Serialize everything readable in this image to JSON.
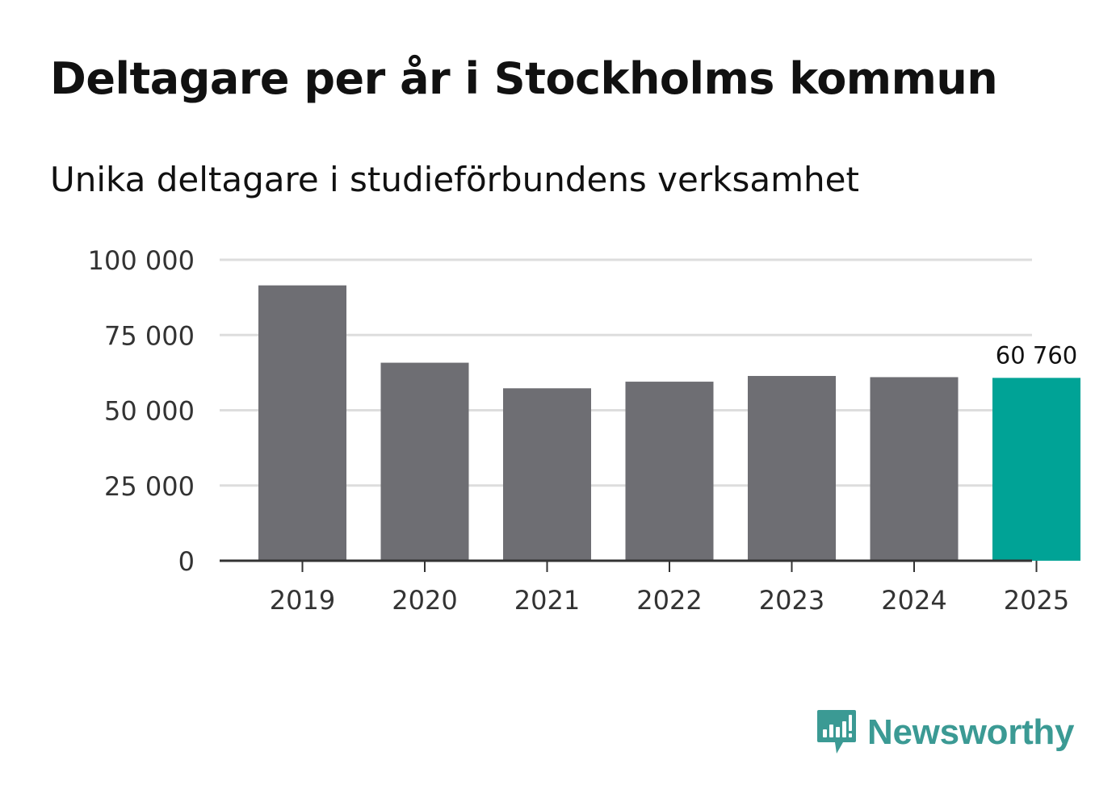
{
  "title": "Deltagare per år i Stockholms kommun",
  "subtitle": "Unika deltagare i studieförbundens verksamhet",
  "brand": {
    "name": "Newsworthy",
    "color": "#3b9a94"
  },
  "colors": {
    "bar": "#6e6e73",
    "highlight": "#00a396",
    "grid": "#dddddd",
    "axis": "#333333",
    "text": "#333333"
  },
  "chart_data": {
    "type": "bar",
    "title": "Deltagare per år i Stockholms kommun",
    "subtitle": "Unika deltagare i studieförbundens verksamhet",
    "xlabel": "",
    "ylabel": "",
    "categories": [
      "2019",
      "2020",
      "2021",
      "2022",
      "2023",
      "2024",
      "2025"
    ],
    "values": [
      91500,
      65800,
      57300,
      59500,
      61400,
      61000,
      60760
    ],
    "highlight_index": 6,
    "data_labels": [
      {
        "index": 6,
        "text": "60 760"
      }
    ],
    "ylim": [
      0,
      100000
    ],
    "yticks": [
      0,
      25000,
      50000,
      75000,
      100000
    ],
    "ytick_labels": [
      "0",
      "25 000",
      "50 000",
      "75 000",
      "100 000"
    ],
    "grid": true,
    "legend": "none"
  }
}
